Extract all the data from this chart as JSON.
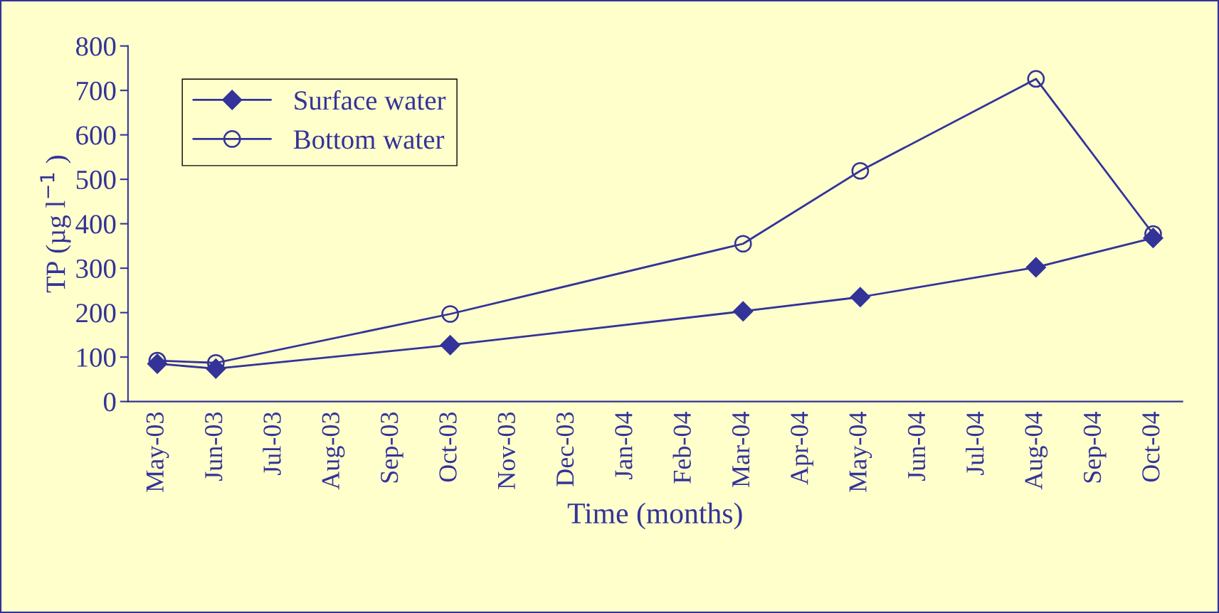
{
  "chart_data": {
    "type": "line",
    "xlabel": "Time (months)",
    "ylabel": "TP (µg l$^{−1}$ )",
    "categories": [
      "May-03",
      "Jun-03",
      "Jul-03",
      "Aug-03",
      "Sep-03",
      "Oct-03",
      "Nov-03",
      "Dec-03",
      "Jan-04",
      "Feb-04",
      "Mar-04",
      "Apr-04",
      "May-04",
      "Jun-04",
      "Jul-04",
      "Aug-04",
      "Sep-04",
      "Oct-04"
    ],
    "series": [
      {
        "name": "Surface water",
        "color": "#333399",
        "marker": "diamond",
        "values": [
          85,
          74,
          null,
          null,
          null,
          127,
          null,
          null,
          null,
          null,
          203,
          null,
          235,
          null,
          null,
          302,
          null,
          368
        ]
      },
      {
        "name": "Bottom water",
        "color": "#333399",
        "marker": "circle",
        "values": [
          92,
          87,
          null,
          null,
          null,
          197,
          null,
          null,
          null,
          null,
          355,
          null,
          519,
          null,
          null,
          726,
          null,
          377
        ]
      }
    ],
    "ylim": [
      0,
      800
    ],
    "yticks": [
      0,
      100,
      200,
      300,
      400,
      500,
      600,
      700,
      800
    ],
    "legend": "top left",
    "grid": false,
    "line_style": "solid"
  }
}
